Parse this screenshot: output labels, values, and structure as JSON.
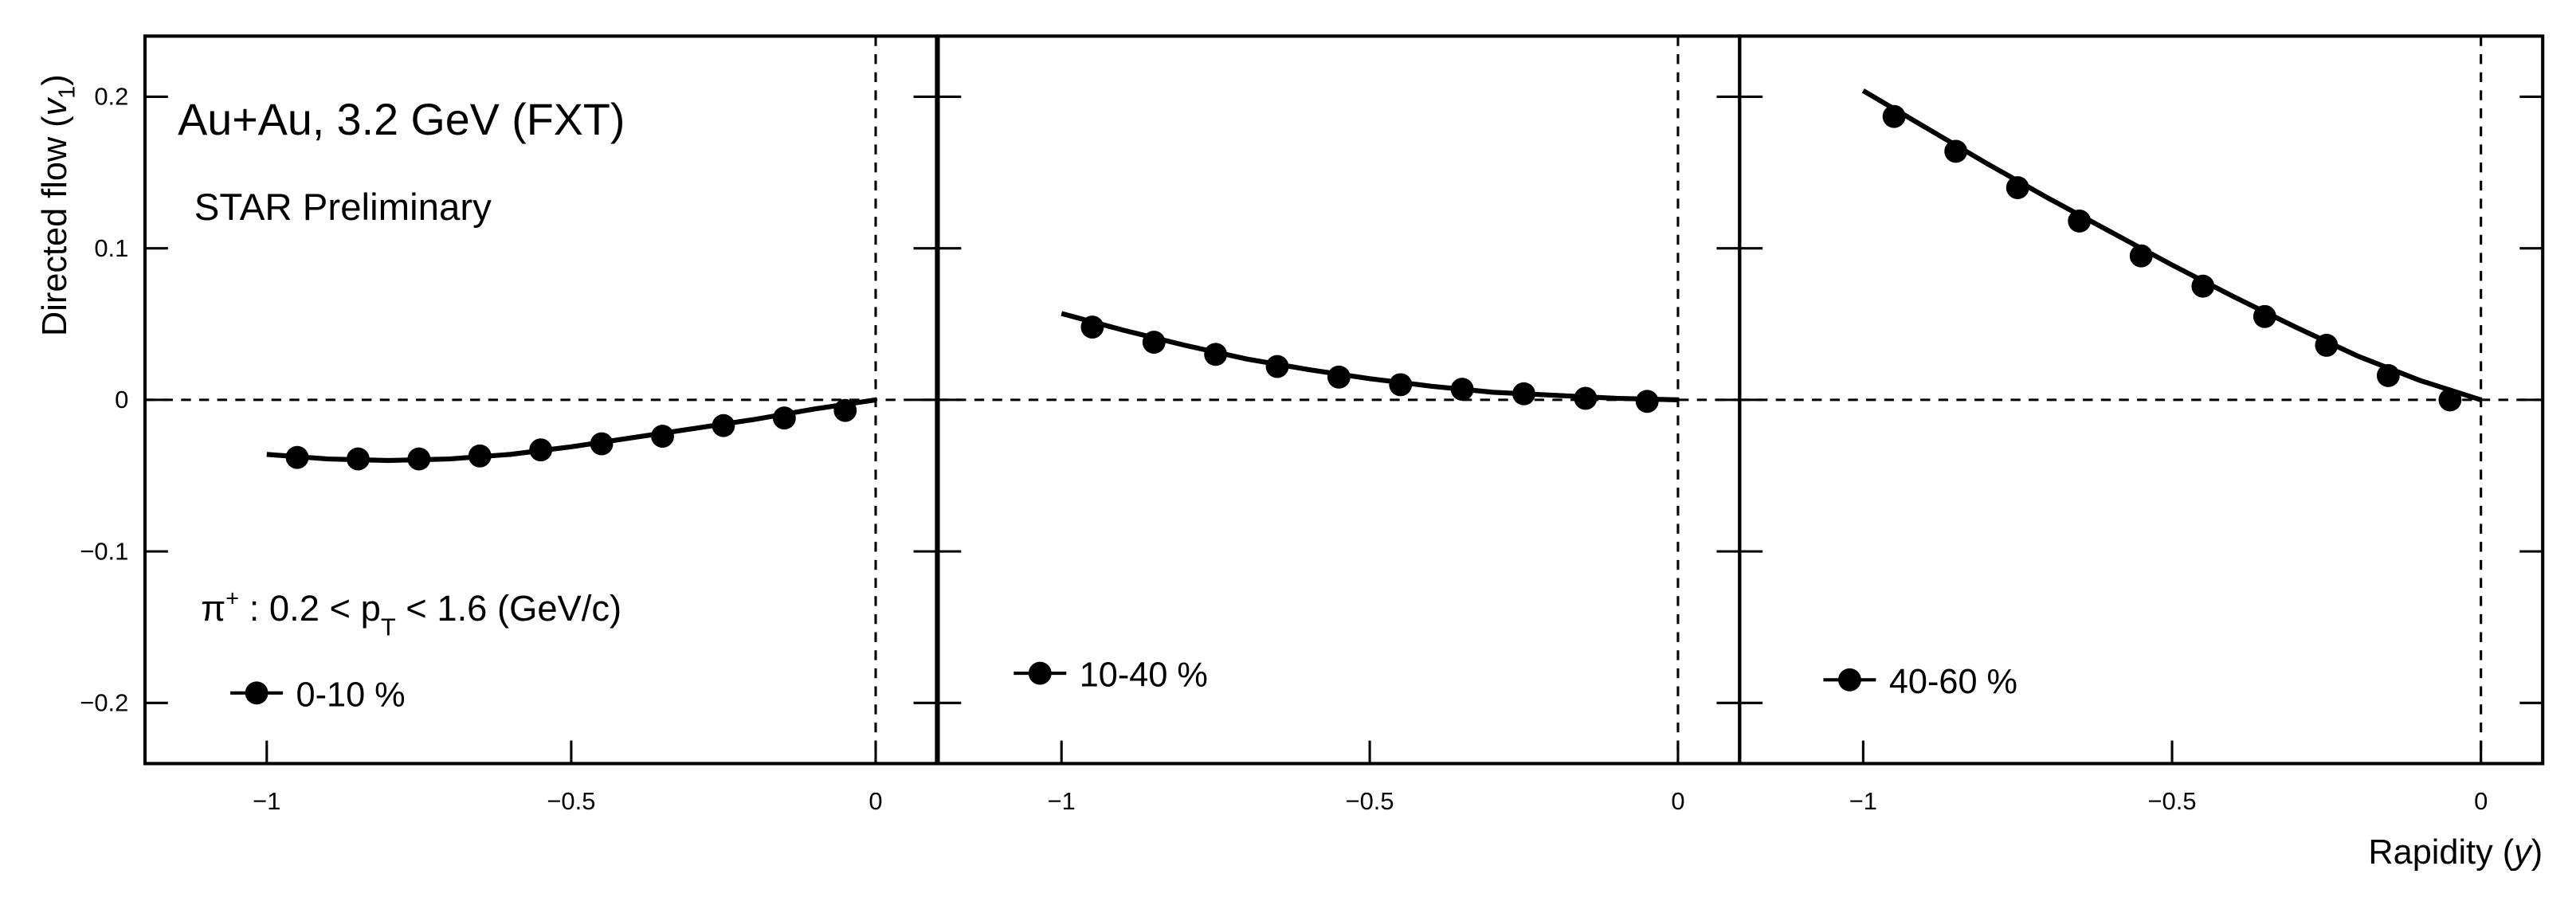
{
  "chart_data": [
    {
      "type": "line",
      "xlim": [
        -1.2,
        0.1
      ],
      "ylim": [
        -0.24,
        0.24
      ],
      "xticks": [
        {
          "value": -1,
          "label": "−1"
        },
        {
          "value": -0.5,
          "label": "−0.5"
        },
        0
      ],
      "yticks": [
        0.2,
        0.1,
        0,
        {
          "value": -0.1,
          "label": "−0.1"
        },
        {
          "value": -0.2,
          "label": "−0.2"
        }
      ],
      "ylabel": [
        "Directed flow (",
        "v",
        "1",
        ")"
      ],
      "annotations": {
        "system": "Au+Au, 3.2 GeV (FXT)",
        "experiment": "STAR Preliminary",
        "cuts": [
          "π",
          "+",
          " : 0.2 < p",
          "T",
          " < 1.6 (GeV/c)"
        ]
      },
      "reference_lines": {
        "x": 0,
        "y": 0
      },
      "x": [
        -0.95,
        -0.85,
        -0.75,
        -0.65,
        -0.55,
        -0.45,
        -0.35,
        -0.25,
        -0.15,
        -0.05
      ],
      "series": [
        {
          "name": "0-10 %",
          "color": "#000000",
          "values": [
            -0.038,
            -0.039,
            -0.039,
            -0.037,
            -0.033,
            -0.029,
            -0.024,
            -0.017,
            -0.012,
            -0.007
          ]
        }
      ],
      "fit_x": [
        -1,
        -0.9,
        -0.8,
        -0.7,
        -0.6,
        -0.5,
        -0.4,
        -0.3,
        -0.2,
        -0.1,
        0
      ],
      "fit_values": [
        -0.036,
        -0.039,
        -0.04,
        -0.039,
        -0.036,
        -0.031,
        -0.025,
        -0.019,
        -0.013,
        -0.006,
        0
      ]
    },
    {
      "type": "line",
      "xlim": [
        -1.2,
        0.1
      ],
      "ylim": [
        -0.24,
        0.24
      ],
      "xticks": [
        {
          "value": -1,
          "label": "−1"
        },
        {
          "value": -0.5,
          "label": "−0.5"
        },
        0
      ],
      "reference_lines": {
        "x": 0,
        "y": 0
      },
      "x": [
        -0.95,
        -0.85,
        -0.75,
        -0.65,
        -0.55,
        -0.45,
        -0.35,
        -0.25,
        -0.15,
        -0.05
      ],
      "series": [
        {
          "name": "10-40 %",
          "color": "#000000",
          "values": [
            0.048,
            0.038,
            0.03,
            0.022,
            0.015,
            0.01,
            0.007,
            0.004,
            0.001,
            -0.001
          ]
        }
      ],
      "fit_x": [
        -1,
        -0.9,
        -0.8,
        -0.7,
        -0.6,
        -0.5,
        -0.4,
        -0.3,
        -0.2,
        -0.1,
        0
      ],
      "fit_values": [
        0.057,
        0.046,
        0.036,
        0.027,
        0.02,
        0.014,
        0.009,
        0.005,
        0.003,
        0.001,
        0
      ]
    },
    {
      "type": "line",
      "xlim": [
        -1.2,
        0.1
      ],
      "ylim": [
        -0.24,
        0.24
      ],
      "xticks": [
        {
          "value": -1,
          "label": "−1"
        },
        {
          "value": -0.5,
          "label": "−0.5"
        },
        0
      ],
      "xlabel": [
        "Rapidity (",
        "y",
        ")"
      ],
      "reference_lines": {
        "x": 0,
        "y": 0
      },
      "x": [
        -0.95,
        -0.85,
        -0.75,
        -0.65,
        -0.55,
        -0.45,
        -0.35,
        -0.25,
        -0.15,
        -0.05
      ],
      "series": [
        {
          "name": "40-60 %",
          "color": "#000000",
          "values": [
            0.187,
            0.164,
            0.14,
            0.118,
            0.095,
            0.075,
            0.055,
            0.036,
            0.016,
            0.0
          ]
        }
      ],
      "fit_x": [
        -1,
        -0.9,
        -0.8,
        -0.7,
        -0.6,
        -0.5,
        -0.4,
        -0.3,
        -0.2,
        -0.1,
        0
      ],
      "fit_values": [
        0.204,
        0.18,
        0.156,
        0.133,
        0.111,
        0.089,
        0.068,
        0.048,
        0.029,
        0.013,
        0
      ]
    }
  ]
}
